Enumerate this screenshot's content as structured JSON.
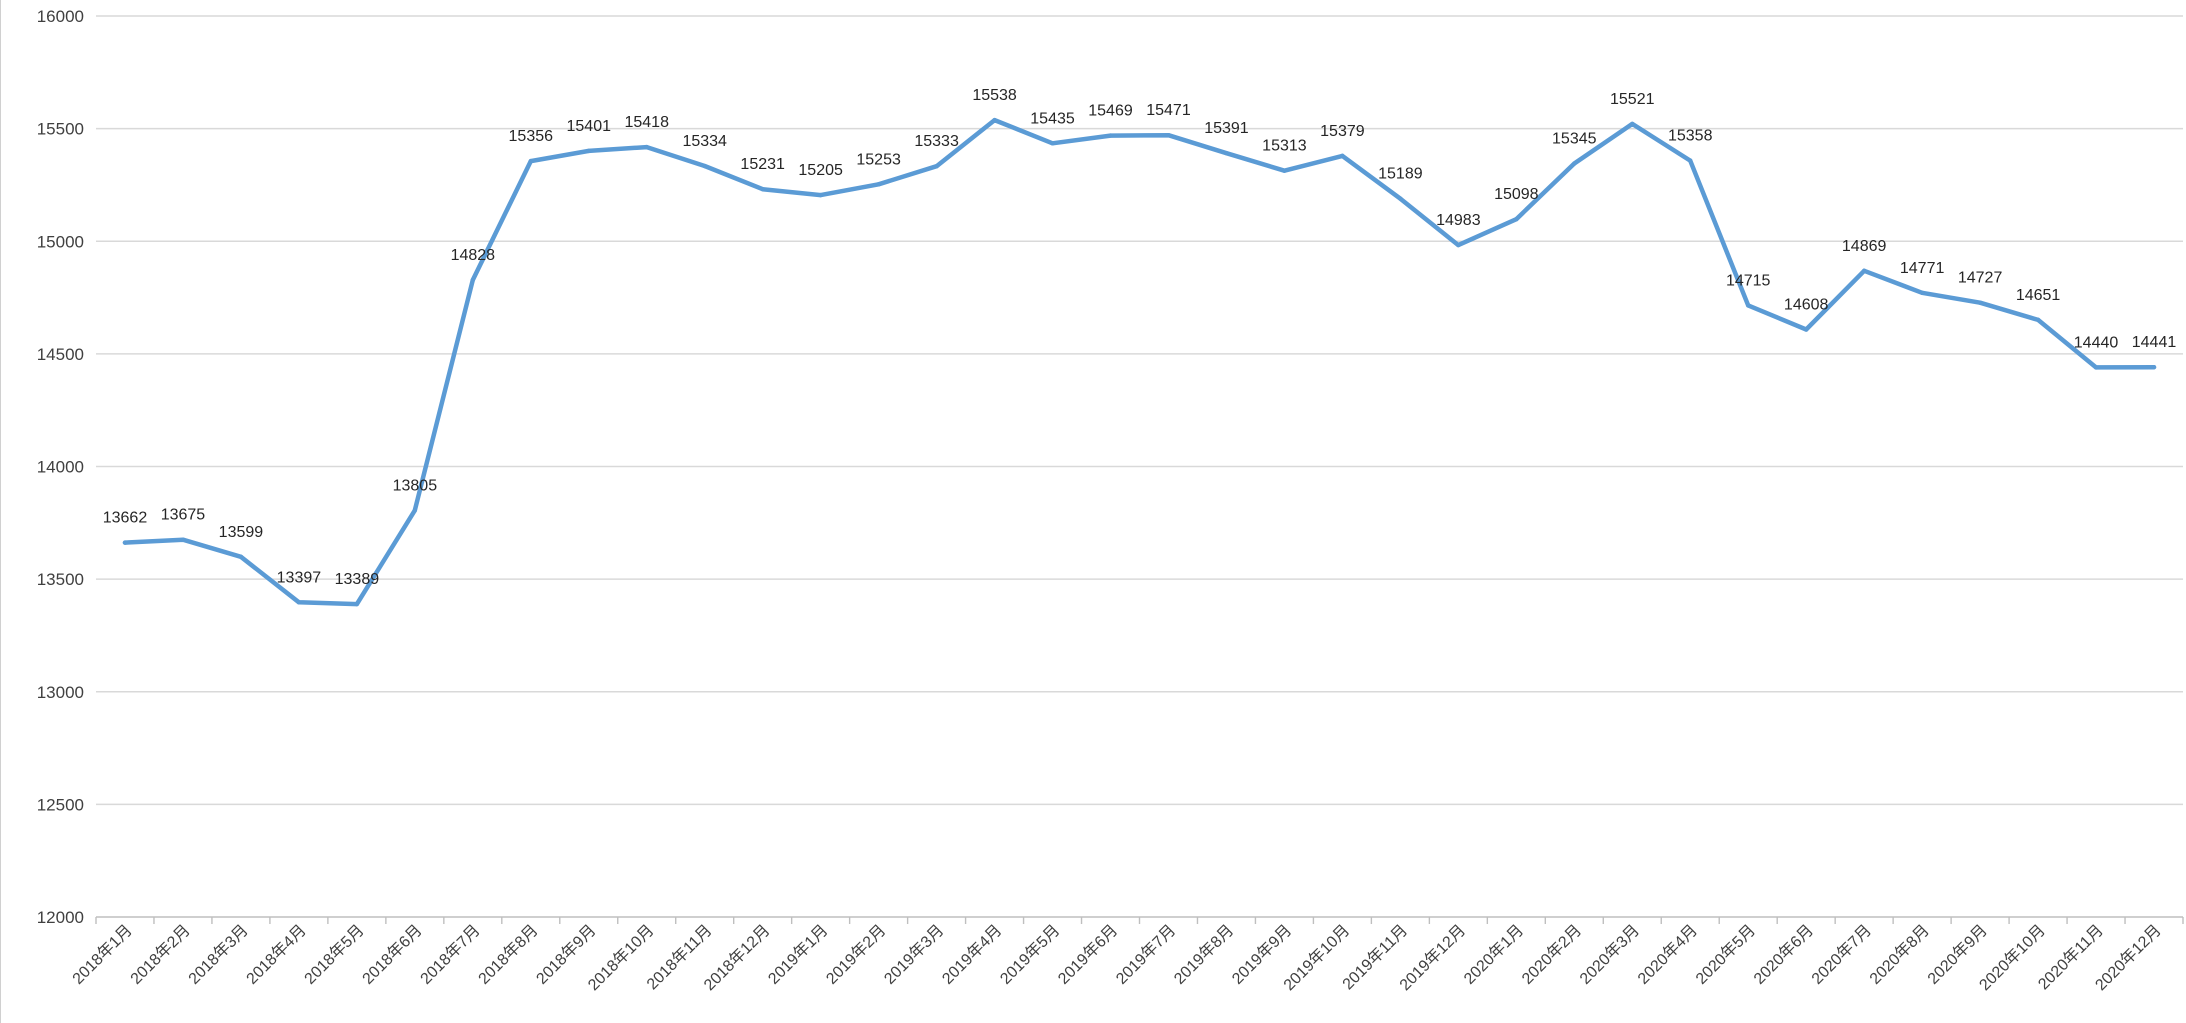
{
  "chart_data": {
    "type": "line",
    "title": "",
    "xlabel": "",
    "ylabel": "",
    "ylim": [
      12000,
      16000
    ],
    "ytick_step": 500,
    "y_ticks": [
      "12000",
      "12500",
      "13000",
      "13500",
      "14000",
      "14500",
      "15000",
      "15500",
      "16000"
    ],
    "grid": true,
    "legend": "none",
    "categories": [
      "2018年1月",
      "2018年2月",
      "2018年3月",
      "2018年4月",
      "2018年5月",
      "2018年6月",
      "2018年7月",
      "2018年8月",
      "2018年9月",
      "2018年10月",
      "2018年11月",
      "2018年12月",
      "2019年1月",
      "2019年2月",
      "2019年3月",
      "2019年4月",
      "2019年5月",
      "2019年6月",
      "2019年7月",
      "2019年8月",
      "2019年9月",
      "2019年10月",
      "2019年11月",
      "2019年12月",
      "2020年1月",
      "2020年2月",
      "2020年3月",
      "2020年4月",
      "2020年5月",
      "2020年6月",
      "2020年7月",
      "2020年8月",
      "2020年9月",
      "2020年10月",
      "2020年11月",
      "2020年12月"
    ],
    "series": [
      {
        "color": "#5b9bd5",
        "values": [
          13662,
          13675,
          13599,
          13397,
          13389,
          13805,
          14828,
          15356,
          15401,
          15418,
          15334,
          15231,
          15205,
          15253,
          15333,
          15538,
          15435,
          15469,
          15471,
          15391,
          15313,
          15379,
          15189,
          14983,
          15098,
          15345,
          15521,
          15358,
          14715,
          14608,
          14869,
          14771,
          14727,
          14651,
          14440,
          14441
        ],
        "data_labels": [
          "13662",
          "13675",
          "13599",
          "13397",
          "13389",
          "13805",
          "14828",
          "15356",
          "15401",
          "15418",
          "15334",
          "15231",
          "15205",
          "15253",
          "15333",
          "15538",
          "15435",
          "15469",
          "15471",
          "15391",
          "15313",
          "15379",
          "15189",
          "14983",
          "15098",
          "15345",
          "15521",
          "15358",
          "14715",
          "14608",
          "14869",
          "14771",
          "14727",
          "14651",
          "14440",
          "14441"
        ]
      }
    ]
  }
}
